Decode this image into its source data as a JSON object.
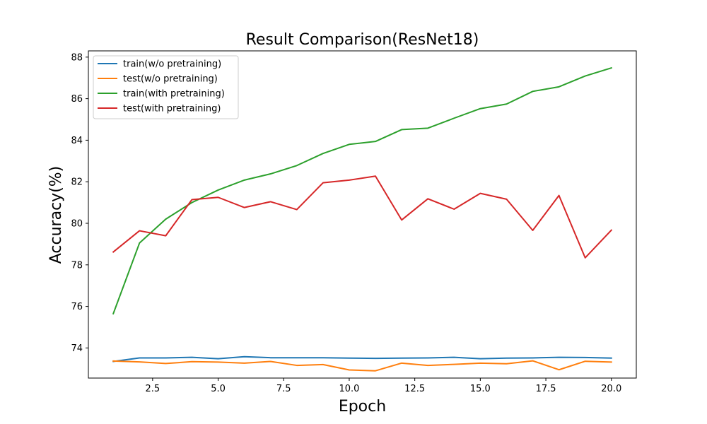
{
  "chart_data": {
    "type": "line",
    "title": "Result Comparison(ResNet18)",
    "xlabel": "Epoch",
    "ylabel": "Accuracy(%)",
    "xlim": [
      0.05,
      20.95
    ],
    "ylim": [
      72.55,
      88.3
    ],
    "xticks": [
      2.5,
      5.0,
      7.5,
      10.0,
      12.5,
      15.0,
      17.5,
      20.0
    ],
    "xtick_labels": [
      "2.5",
      "5.0",
      "7.5",
      "10.0",
      "12.5",
      "15.0",
      "17.5",
      "20.0"
    ],
    "yticks": [
      74,
      76,
      78,
      80,
      82,
      84,
      86,
      88
    ],
    "ytick_labels": [
      "74",
      "76",
      "78",
      "80",
      "82",
      "84",
      "86",
      "88"
    ],
    "grid": false,
    "legend_position": "top-left",
    "x": [
      1,
      2,
      3,
      4,
      5,
      6,
      7,
      8,
      9,
      10,
      11,
      12,
      13,
      14,
      15,
      16,
      17,
      18,
      19,
      20
    ],
    "series": [
      {
        "name": "train(w/o pretraining)",
        "color": "#1f77b4",
        "values": [
          73.35,
          73.52,
          73.52,
          73.55,
          73.48,
          73.58,
          73.53,
          73.53,
          73.53,
          73.51,
          73.5,
          73.51,
          73.52,
          73.55,
          73.48,
          73.51,
          73.52,
          73.55,
          73.54,
          73.51
        ]
      },
      {
        "name": "test(w/o pretraining)",
        "color": "#ff7f0e",
        "values": [
          73.37,
          73.33,
          73.25,
          73.34,
          73.32,
          73.27,
          73.35,
          73.16,
          73.2,
          72.94,
          72.9,
          73.27,
          73.16,
          73.21,
          73.27,
          73.24,
          73.38,
          72.95,
          73.36,
          73.32
        ]
      },
      {
        "name": "train(with pretraining)",
        "color": "#2ca02c",
        "values": [
          75.65,
          79.05,
          80.2,
          81.0,
          81.6,
          82.08,
          82.38,
          82.78,
          83.36,
          83.8,
          83.94,
          84.51,
          84.58,
          85.06,
          85.52,
          85.74,
          86.35,
          86.57,
          87.09,
          87.48
        ]
      },
      {
        "name": "test(with pretraining)",
        "color": "#d62728",
        "values": [
          78.62,
          79.64,
          79.4,
          81.14,
          81.25,
          80.76,
          81.04,
          80.66,
          81.95,
          82.08,
          82.27,
          80.16,
          81.18,
          80.68,
          81.44,
          81.16,
          79.66,
          81.34,
          78.34,
          79.67
        ]
      }
    ]
  }
}
